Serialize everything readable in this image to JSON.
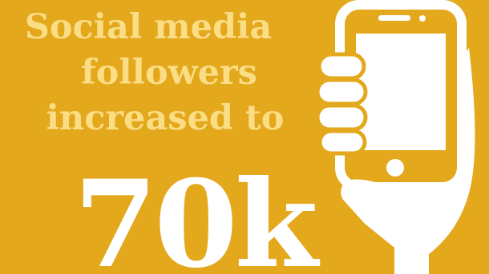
{
  "headline": {
    "line1": "Social media",
    "line2": "followers",
    "line3": "increased to"
  },
  "figure": "70k",
  "colors": {
    "background": "#E3A81C",
    "headline": "#FBDD86",
    "figure": "#FFFFFF",
    "icon": "#FFFFFF"
  },
  "icon": "hand-holding-phone-icon"
}
